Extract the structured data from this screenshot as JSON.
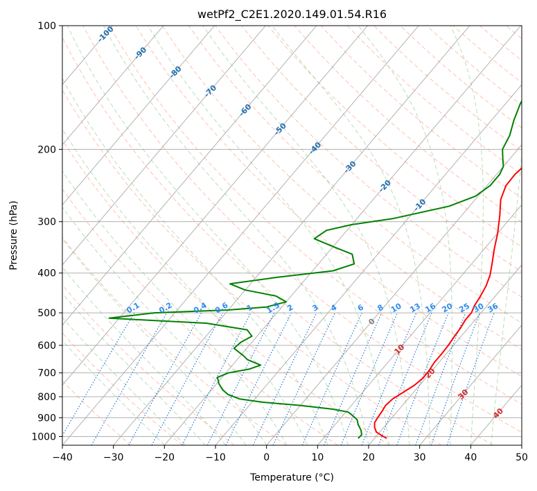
{
  "chart_data": {
    "type": "line",
    "title": "wetPf2_C2E1.2020.149.01.54.R16",
    "xlabel": "Temperature (°C)",
    "ylabel": "Pressure (hPa)",
    "xlim": [
      -40,
      50
    ],
    "ylim": [
      1050,
      100
    ],
    "y_scale": "log",
    "grid": true,
    "x_ticks": [
      -40,
      -30,
      -20,
      -10,
      0,
      10,
      20,
      30,
      40,
      50
    ],
    "y_ticks": [
      1000,
      900,
      800,
      700,
      600,
      500,
      400,
      300,
      200,
      100
    ],
    "series": [
      {
        "role": "temperature",
        "color": "#ff0000",
        "points": [
          [
            22.4,
            1010
          ],
          [
            21.0,
            995
          ],
          [
            19.3,
            975
          ],
          [
            18.2,
            950
          ],
          [
            17.4,
            925
          ],
          [
            17.2,
            900
          ],
          [
            17.0,
            870
          ],
          [
            16.7,
            840
          ],
          [
            17.0,
            810
          ],
          [
            18.0,
            780
          ],
          [
            19.0,
            750
          ],
          [
            19.5,
            720
          ],
          [
            19.4,
            690
          ],
          [
            19.1,
            660
          ],
          [
            19.1,
            630
          ],
          [
            19.0,
            600
          ],
          [
            18.7,
            570
          ],
          [
            18.5,
            545
          ],
          [
            18.1,
            520
          ],
          [
            18.1,
            500
          ],
          [
            17.5,
            480
          ],
          [
            17.2,
            460
          ],
          [
            16.5,
            430
          ],
          [
            15.5,
            405
          ],
          [
            14.0,
            380
          ],
          [
            12.0,
            350
          ],
          [
            10.0,
            320
          ],
          [
            7.5,
            290
          ],
          [
            5.0,
            265
          ],
          [
            3.7,
            245
          ],
          [
            3.6,
            230
          ],
          [
            4.2,
            215
          ],
          [
            4.2,
            200
          ],
          [
            3.3,
            185
          ],
          [
            3.0,
            170
          ],
          [
            3.9,
            155
          ],
          [
            4.8,
            140
          ],
          [
            5.9,
            130
          ],
          [
            6.8,
            122
          ],
          [
            6.6,
            115
          ],
          [
            7.1,
            108
          ],
          [
            8.0,
            100
          ]
        ]
      },
      {
        "role": "dewpoint",
        "color": "#008000",
        "points": [
          [
            16.8,
            1010
          ],
          [
            16.9,
            990
          ],
          [
            16.0,
            965
          ],
          [
            14.5,
            935
          ],
          [
            13.5,
            910
          ],
          [
            12.0,
            890
          ],
          [
            10.5,
            872
          ],
          [
            7.0,
            858
          ],
          [
            0.0,
            840
          ],
          [
            -8.0,
            825
          ],
          [
            -13.0,
            810
          ],
          [
            -16.0,
            790
          ],
          [
            -17.8,
            770
          ],
          [
            -19.5,
            745
          ],
          [
            -20.9,
            718
          ],
          [
            -19.5,
            700
          ],
          [
            -16.0,
            685
          ],
          [
            -14.5,
            670
          ],
          [
            -18.0,
            650
          ],
          [
            -19.5,
            635
          ],
          [
            -22.5,
            610
          ],
          [
            -22.2,
            590
          ],
          [
            -21.0,
            570
          ],
          [
            -23.0,
            550
          ],
          [
            -32.0,
            530
          ],
          [
            -52.0,
            515
          ],
          [
            -44.0,
            500
          ],
          [
            -30.0,
            492
          ],
          [
            -23.0,
            484
          ],
          [
            -20.0,
            470
          ],
          [
            -23.0,
            455
          ],
          [
            -30.0,
            440
          ],
          [
            -34.0,
            425
          ],
          [
            -26.0,
            410
          ],
          [
            -16.0,
            395
          ],
          [
            -13.0,
            380
          ],
          [
            -15.0,
            360
          ],
          [
            -20.0,
            345
          ],
          [
            -25.0,
            330
          ],
          [
            -24.0,
            315
          ],
          [
            -20.0,
            305
          ],
          [
            -13.0,
            295
          ],
          [
            -4.0,
            275
          ],
          [
            -0.5,
            260
          ],
          [
            0.6,
            245
          ],
          [
            0.6,
            230
          ],
          [
            0.0,
            220
          ],
          [
            -1.5,
            210
          ],
          [
            -3.0,
            200
          ],
          [
            -3.9,
            185
          ],
          [
            -5.6,
            170
          ],
          [
            -7.1,
            155
          ],
          [
            -8.1,
            140
          ],
          [
            -8.7,
            130
          ],
          [
            -8.0,
            122
          ],
          [
            -6.8,
            115
          ],
          [
            -5.2,
            108
          ],
          [
            -3.2,
            100
          ]
        ]
      }
    ],
    "isotherm_labels": [
      "-100",
      "-90",
      "-80",
      "-70",
      "-60",
      "-50",
      "-40",
      "-30",
      "-20",
      "-10",
      "0",
      "10",
      "20",
      "30",
      "40"
    ],
    "mixing_ratio_labels": [
      "0.1",
      "0.2",
      "0.4",
      "0.6",
      "1",
      "1.5",
      "2",
      "3",
      "4",
      "6",
      "8",
      "10",
      "13",
      "16",
      "20",
      "25",
      "30",
      "36"
    ],
    "colors": {
      "isotherm": "#a9a9a9",
      "dry_adiabat": "#ff8c69",
      "moist_adiabat": "#7fbf7f",
      "mixing_ratio": "#1f77d4",
      "isotherm_label_cold": "#1f6fb0",
      "isotherm_label_warm": "#d62728",
      "isotherm_label_zero": "#808080",
      "mixing_ratio_label": "#2a8cf0"
    }
  }
}
